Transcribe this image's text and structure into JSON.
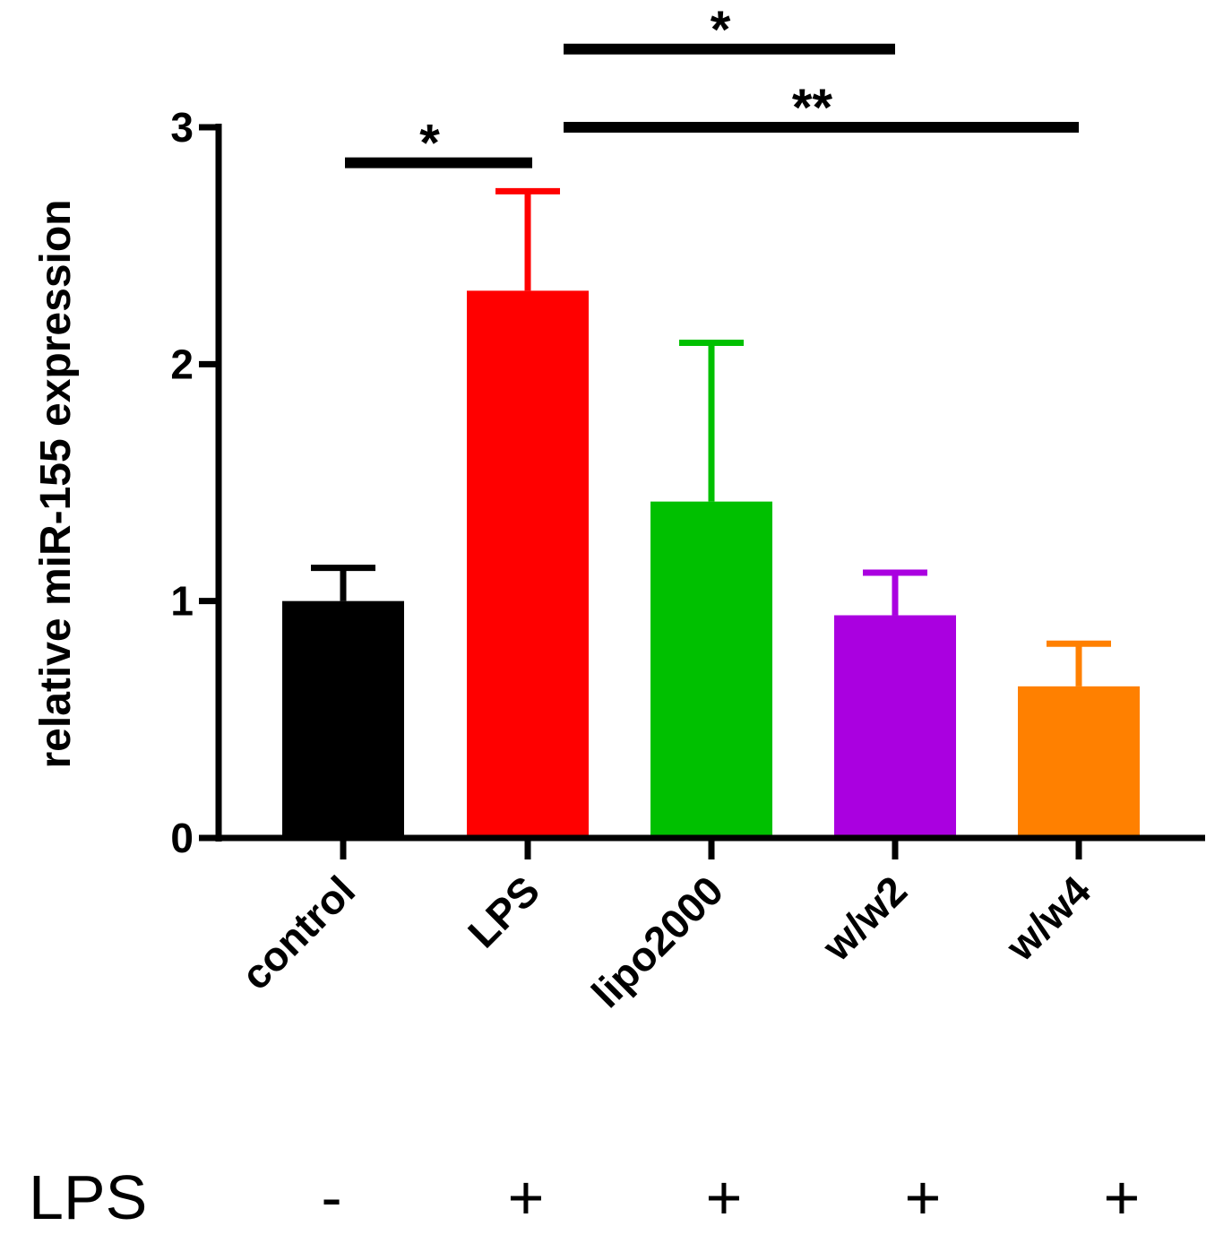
{
  "chart_data": {
    "type": "bar",
    "title": "",
    "xlabel": "",
    "ylabel": "relative miR-155 expression",
    "ylim": [
      0,
      3
    ],
    "yticks": [
      0,
      1,
      2,
      3
    ],
    "categories": [
      "control",
      "LPS",
      "lipo2000",
      "w/w2",
      "w/w4"
    ],
    "values": [
      1.0,
      2.31,
      1.42,
      0.94,
      0.64
    ],
    "errors": [
      0.14,
      0.42,
      0.67,
      0.18,
      0.18
    ],
    "colors": [
      "#000000",
      "#ff0000",
      "#00c000",
      "#aa00e0",
      "#ff8000"
    ],
    "significance": [
      {
        "from": 0,
        "to": 1,
        "level": 2.85,
        "label": "*"
      },
      {
        "from": 1,
        "to": 3,
        "level": 3.33,
        "label": "*"
      },
      {
        "from": 1,
        "to": 4,
        "level": 3.0,
        "label": "**"
      }
    ],
    "condition_row": {
      "label": "LPS",
      "values": [
        "-",
        "+",
        "+",
        "+",
        "+"
      ]
    }
  }
}
